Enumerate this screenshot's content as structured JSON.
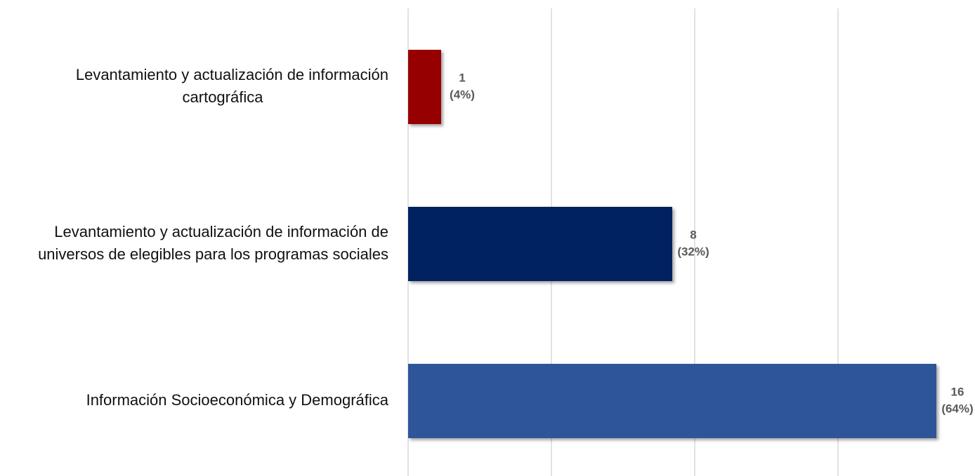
{
  "chart_data": {
    "type": "barh",
    "categories": [
      [
        "Levantamiento y actualización de información",
        "cartográfica"
      ],
      [
        "Levantamiento y actualización de información de",
        "universos de elegibles para los programas sociales"
      ],
      [
        "Información Socioeconómica y Demográfica"
      ]
    ],
    "values": [
      1,
      8,
      16
    ],
    "percentages": [
      4,
      32,
      64
    ],
    "percentage_labels": [
      "(4%)",
      "(32%)",
      "(64%)"
    ],
    "colors": [
      "#960000",
      "#002060",
      "#2f5597"
    ],
    "xlim": [
      0,
      16
    ],
    "xticks": [
      0,
      4.34,
      8.68,
      13.02
    ],
    "grid": true
  }
}
